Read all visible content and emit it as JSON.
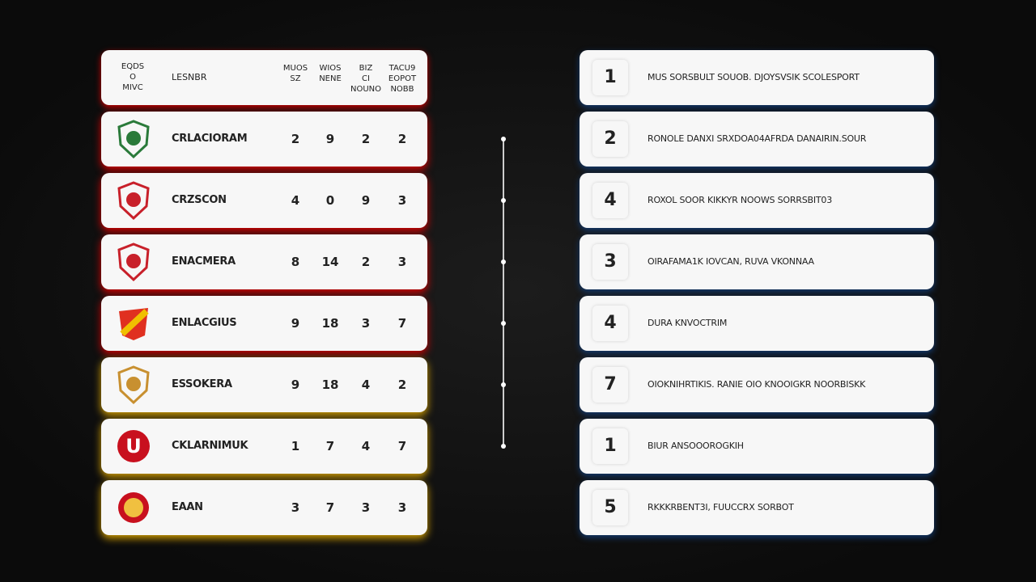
{
  "left": {
    "header": {
      "crest": [
        "EQDS",
        "O",
        "MIVC"
      ],
      "team": "LESNBR",
      "columns": [
        [
          "MUOS",
          "SZ"
        ],
        [
          "WIOS",
          "NENE"
        ],
        [
          "BIZ",
          "CI",
          "NOUNO"
        ],
        [
          "TACU9",
          "EOPOT",
          "NOBB"
        ]
      ]
    },
    "rows": [
      {
        "team": "CRLACIORAM",
        "stats": [
          2,
          9,
          2,
          2
        ]
      },
      {
        "team": "CRZSCON",
        "stats": [
          4,
          0,
          9,
          3
        ]
      },
      {
        "team": "ENACMERA",
        "stats": [
          8,
          14,
          2,
          3
        ]
      },
      {
        "team": "ENLACGIUS",
        "stats": [
          9,
          18,
          3,
          7
        ]
      },
      {
        "team": "ESSOKERA",
        "stats": [
          9,
          18,
          4,
          2
        ]
      },
      {
        "team": "CKLARNIMUK",
        "stats": [
          1,
          7,
          4,
          7
        ]
      },
      {
        "team": "EAAN",
        "stats": [
          3,
          7,
          3,
          3
        ]
      }
    ]
  },
  "right": {
    "rows": [
      {
        "rank": 1,
        "text": "MUS SORSBULT SOUOB. DJOYSVSIK SCOLESPORT"
      },
      {
        "rank": 2,
        "text": "RONOLE DANXI SRXDOA04AFRDA DANAIRIN.SOUR"
      },
      {
        "rank": 4,
        "text": "ROXOL SOOR KIKKYR NOOWS SORRSBIT03"
      },
      {
        "rank": 3,
        "text": "OIRAFAMA1K IOVCAN, RUVA VKONNAA"
      },
      {
        "rank": 4,
        "text": "DURA KNVOCTRIM"
      },
      {
        "rank": 7,
        "text": "OIOKNIHRTIKIS. RANIE OIO KNOOIGKR NOORBISKK"
      },
      {
        "rank": 1,
        "text": "BIUR ANSOOOROGKIH"
      },
      {
        "rank": 5,
        "text": "RKKKRBENT3I, FUUCCRX SORBOT"
      }
    ]
  }
}
